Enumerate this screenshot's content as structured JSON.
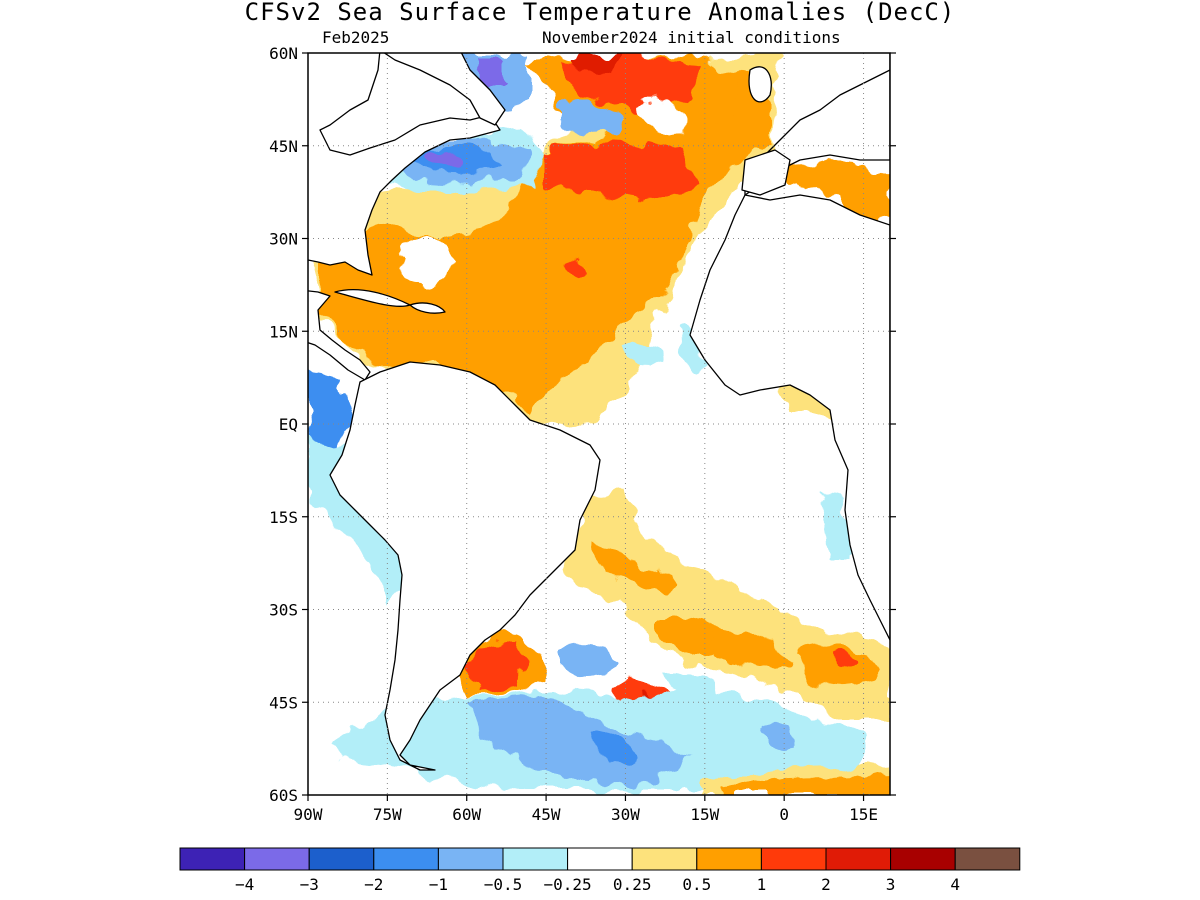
{
  "title": "CFSv2 Sea Surface Temperature Anomalies (DecC)",
  "subtitle_left": "Feb2025",
  "subtitle_right": "November2024 initial conditions",
  "map": {
    "lon_range": [
      -90,
      20
    ],
    "lat_range": [
      -60,
      60
    ],
    "lat_ticks": [
      {
        "value": 60,
        "label": "60N"
      },
      {
        "value": 45,
        "label": "45N"
      },
      {
        "value": 30,
        "label": "30N"
      },
      {
        "value": 15,
        "label": "15N"
      },
      {
        "value": 0,
        "label": "EQ"
      },
      {
        "value": -15,
        "label": "15S"
      },
      {
        "value": -30,
        "label": "30S"
      },
      {
        "value": -45,
        "label": "45S"
      },
      {
        "value": -60,
        "label": "60S"
      }
    ],
    "lon_ticks": [
      {
        "value": -90,
        "label": "90W"
      },
      {
        "value": -75,
        "label": "75W"
      },
      {
        "value": -60,
        "label": "60W"
      },
      {
        "value": -45,
        "label": "45W"
      },
      {
        "value": -30,
        "label": "30W"
      },
      {
        "value": -15,
        "label": "15W"
      },
      {
        "value": 0,
        "label": "0"
      },
      {
        "value": 15,
        "label": "15E"
      }
    ],
    "grid": "dotted"
  },
  "legend": {
    "colors": [
      "#3d22b5",
      "#7b6ae8",
      "#1c5fcc",
      "#3c8ef0",
      "#79b4f4",
      "#b2eef8",
      "#ffffff",
      "#fde27c",
      "#ff9f00",
      "#ff3a0a",
      "#e01b06",
      "#a80000",
      "#7a5040"
    ],
    "labels": [
      "−4",
      "−3",
      "−2",
      "−1",
      "−0.5",
      "−0.25",
      "0.25",
      "0.5",
      "1",
      "2",
      "3",
      "4"
    ]
  }
}
